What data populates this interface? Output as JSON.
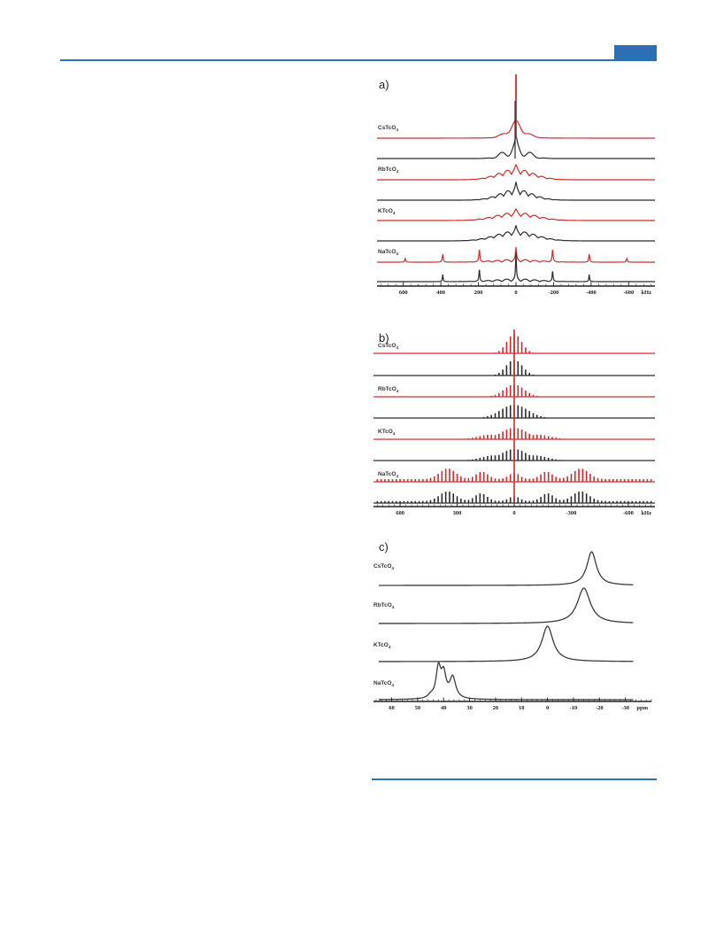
{
  "figure": {
    "colors": {
      "rule": "#2c6fb4",
      "red": "#d42a2a",
      "black": "#2b2b2b",
      "gray": "#3a3a3a"
    },
    "panels": [
      {
        "letter": "a)",
        "unit": "kHz",
        "ticks": [
          {
            "value": 600,
            "label": "600"
          },
          {
            "value": 400,
            "label": "400"
          },
          {
            "value": 200,
            "label": "200"
          },
          {
            "value": 0,
            "label": "0"
          },
          {
            "value": -200,
            "label": "-200"
          },
          {
            "value": -400,
            "label": "-400"
          },
          {
            "value": -600,
            "label": "-600"
          }
        ],
        "labels": [
          {
            "base": "CsTcO",
            "sub": "4"
          },
          {
            "base": "RbTcO",
            "sub": "4"
          },
          {
            "base": "KTcO",
            "sub": "4"
          },
          {
            "base": "NaTcO",
            "sub": "4"
          }
        ]
      },
      {
        "letter": "b)",
        "unit": "kHz",
        "ticks": [
          {
            "value": 600,
            "label": "600"
          },
          {
            "value": 300,
            "label": "300"
          },
          {
            "value": 0,
            "label": "0"
          },
          {
            "value": -300,
            "label": "-300"
          },
          {
            "value": -600,
            "label": "-600"
          }
        ],
        "labels": [
          {
            "base": "CsTcO",
            "sub": "4"
          },
          {
            "base": "RbTcO",
            "sub": "4"
          },
          {
            "base": "KTcO",
            "sub": "4"
          },
          {
            "base": "NaTcO",
            "sub": "4"
          }
        ]
      },
      {
        "letter": "c)",
        "unit": "ppm",
        "ticks": [
          {
            "value": 60,
            "label": "60"
          },
          {
            "value": 50,
            "label": "50"
          },
          {
            "value": 40,
            "label": "40"
          },
          {
            "value": 30,
            "label": "30"
          },
          {
            "value": 20,
            "label": "20"
          },
          {
            "value": 10,
            "label": "10"
          },
          {
            "value": 0,
            "label": "0"
          },
          {
            "value": -10,
            "label": "-10"
          },
          {
            "value": -20,
            "label": "-20"
          },
          {
            "value": -30,
            "label": "-30"
          }
        ],
        "labels": [
          {
            "base": "CsTcO",
            "sub": "4"
          },
          {
            "base": "RbTcO",
            "sub": "4"
          },
          {
            "base": "KTcO",
            "sub": "4"
          },
          {
            "base": "NaTcO",
            "sub": "4"
          }
        ]
      }
    ]
  }
}
